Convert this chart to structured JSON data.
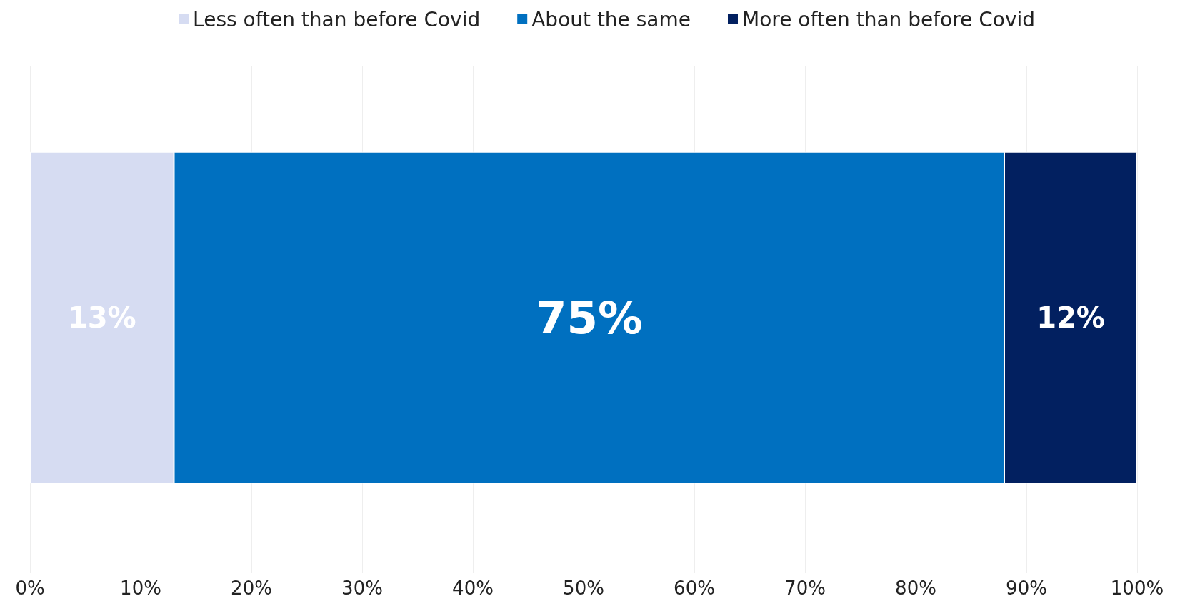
{
  "chart_data": {
    "type": "bar",
    "orientation": "horizontal",
    "stacked": true,
    "categories": [
      null
    ],
    "series": [
      {
        "name": "Less often than before Covid",
        "color": "#d6dcf2",
        "values": [
          13
        ],
        "value_labels": [
          "13%"
        ]
      },
      {
        "name": "About the same",
        "color": "#0070c0",
        "values": [
          75
        ],
        "value_labels": [
          "75%"
        ]
      },
      {
        "name": "More often than before Covid",
        "color": "#022060",
        "values": [
          12
        ],
        "value_labels": [
          "12%"
        ]
      }
    ],
    "xlim": [
      0,
      100
    ],
    "xticks": [
      {
        "value": 0,
        "label": "0%"
      },
      {
        "value": 10,
        "label": "10%"
      },
      {
        "value": 20,
        "label": "20%"
      },
      {
        "value": 30,
        "label": "30%"
      },
      {
        "value": 40,
        "label": "40%"
      },
      {
        "value": 50,
        "label": "50%"
      },
      {
        "value": 60,
        "label": "60%"
      },
      {
        "value": 70,
        "label": "70%"
      },
      {
        "value": 80,
        "label": "80%"
      },
      {
        "value": 90,
        "label": "90%"
      },
      {
        "value": 100,
        "label": "100%"
      }
    ],
    "grid": "x",
    "legend": "top right"
  }
}
